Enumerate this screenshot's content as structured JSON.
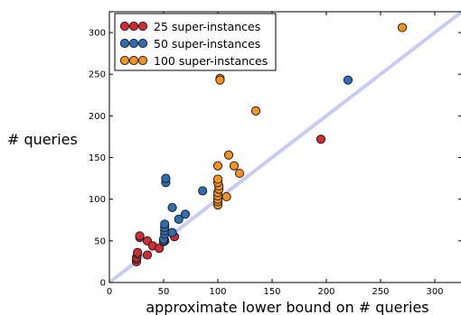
{
  "chart_data": {
    "type": "scatter",
    "xlabel": "approximate lower bound on # queries",
    "ylabel": "# queries",
    "xlim": [
      0,
      325
    ],
    "ylim": [
      0,
      325
    ],
    "xticks": [
      0,
      50,
      100,
      150,
      200,
      250,
      300
    ],
    "yticks": [
      0,
      50,
      100,
      150,
      200,
      250,
      300
    ],
    "legend_position": "top-left",
    "reference_line": {
      "from": [
        0,
        0
      ],
      "to": [
        325,
        325
      ],
      "color": "#c8ccf4"
    },
    "series": [
      {
        "name": "25 super-instances",
        "color": "#d62a33",
        "points": [
          [
            25,
            25
          ],
          [
            25,
            28
          ],
          [
            25,
            30
          ],
          [
            26,
            34
          ],
          [
            26,
            36
          ],
          [
            28,
            54
          ],
          [
            28,
            56
          ],
          [
            35,
            50
          ],
          [
            35,
            33
          ],
          [
            40,
            44
          ],
          [
            46,
            41
          ],
          [
            50,
            49
          ],
          [
            51,
            50
          ],
          [
            60,
            55
          ],
          [
            195,
            172
          ]
        ]
      },
      {
        "name": "50 super-instances",
        "color": "#2e6db4",
        "points": [
          [
            50,
            50
          ],
          [
            50,
            52
          ],
          [
            51,
            58
          ],
          [
            51,
            62
          ],
          [
            51,
            66
          ],
          [
            51,
            70
          ],
          [
            52,
            120
          ],
          [
            52,
            125
          ],
          [
            58,
            90
          ],
          [
            58,
            60
          ],
          [
            64,
            76
          ],
          [
            70,
            82
          ],
          [
            86,
            110
          ],
          [
            220,
            243
          ]
        ]
      },
      {
        "name": "100 super-instances",
        "color": "#f7921e",
        "points": [
          [
            100,
            93
          ],
          [
            100,
            97
          ],
          [
            100,
            100
          ],
          [
            100,
            104
          ],
          [
            100,
            108
          ],
          [
            101,
            112
          ],
          [
            101,
            116
          ],
          [
            100,
            120
          ],
          [
            100,
            124
          ],
          [
            100,
            140
          ],
          [
            102,
            245
          ],
          [
            102,
            243
          ],
          [
            108,
            103
          ],
          [
            110,
            153
          ],
          [
            115,
            140
          ],
          [
            120,
            131
          ],
          [
            135,
            206
          ],
          [
            270,
            306
          ]
        ]
      }
    ]
  }
}
